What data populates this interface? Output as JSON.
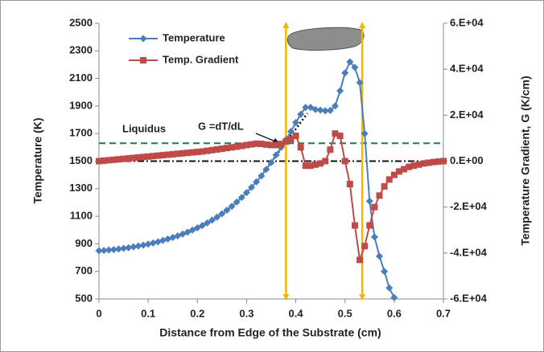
{
  "chart_data": {
    "type": "line",
    "xlabel": "Distance from Edge of the Substrate (cm)",
    "ylabel": "Temperature (K)",
    "y2label": "Temperature Gradient, G (K/cm)",
    "xlim": [
      0,
      0.7
    ],
    "xticks": [
      0,
      0.1,
      0.2,
      0.3,
      0.4,
      0.5,
      0.6,
      0.7
    ],
    "ylim": [
      500,
      2500
    ],
    "yticks": [
      500,
      700,
      900,
      1100,
      1300,
      1500,
      1700,
      1900,
      2100,
      2300,
      2500
    ],
    "y2lim": [
      -60000,
      60000
    ],
    "y2ticks": [
      {
        "value": -60000,
        "label": "-6.E+04"
      },
      {
        "value": -40000,
        "label": "-4.E+04"
      },
      {
        "value": -20000,
        "label": "-2.E+04"
      },
      {
        "value": 0,
        "label": "0.E+00"
      },
      {
        "value": 20000,
        "label": "2.E+04"
      },
      {
        "value": 40000,
        "label": "4.E+04"
      },
      {
        "value": 60000,
        "label": "6.E+04"
      }
    ],
    "annotations": [
      "Liquidus",
      "G =dT/dL"
    ],
    "hlines": [
      {
        "value": 1630,
        "color": "#1f7a4c",
        "dash": "8 5"
      },
      {
        "value": 1500,
        "color": "#111111",
        "dash": "8 3 2 3"
      }
    ],
    "vlines": [
      {
        "value": 0.38,
        "color": "#f5b800"
      },
      {
        "value": 0.535,
        "color": "#f5b800"
      }
    ],
    "series": [
      {
        "name": "Temperature",
        "color": "#4a7ebb",
        "marker": "diamond",
        "x": [
          0,
          0.01,
          0.02,
          0.03,
          0.04,
          0.05,
          0.06,
          0.07,
          0.08,
          0.09,
          0.1,
          0.11,
          0.12,
          0.13,
          0.14,
          0.15,
          0.16,
          0.17,
          0.18,
          0.19,
          0.2,
          0.21,
          0.22,
          0.23,
          0.24,
          0.25,
          0.26,
          0.27,
          0.28,
          0.29,
          0.3,
          0.31,
          0.32,
          0.33,
          0.34,
          0.35,
          0.36,
          0.37,
          0.38,
          0.39,
          0.4,
          0.41,
          0.42,
          0.43,
          0.44,
          0.45,
          0.46,
          0.47,
          0.48,
          0.49,
          0.5,
          0.51,
          0.52,
          0.53,
          0.54,
          0.55,
          0.56,
          0.57,
          0.58,
          0.59,
          0.6
        ],
        "values": [
          850,
          852,
          855,
          858,
          862,
          867,
          872,
          878,
          884,
          891,
          898,
          906,
          915,
          925,
          935,
          946,
          958,
          971,
          985,
          1000,
          1016,
          1033,
          1052,
          1072,
          1094,
          1118,
          1144,
          1172,
          1203,
          1236,
          1272,
          1310,
          1350,
          1393,
          1440,
          1490,
          1545,
          1600,
          1655,
          1715,
          1780,
          1840,
          1890,
          1890,
          1875,
          1870,
          1865,
          1868,
          1900,
          2010,
          2140,
          2220,
          2180,
          2070,
          1700,
          1210,
          950,
          810,
          700,
          580,
          510
        ]
      },
      {
        "name": "Temp. Gradient",
        "color": "#be4b48",
        "marker": "square",
        "axis": "y2",
        "x": [
          0,
          0.01,
          0.02,
          0.03,
          0.04,
          0.05,
          0.06,
          0.07,
          0.08,
          0.09,
          0.1,
          0.11,
          0.12,
          0.13,
          0.14,
          0.15,
          0.16,
          0.17,
          0.18,
          0.19,
          0.2,
          0.21,
          0.22,
          0.23,
          0.24,
          0.25,
          0.26,
          0.27,
          0.28,
          0.29,
          0.3,
          0.31,
          0.32,
          0.33,
          0.34,
          0.35,
          0.36,
          0.37,
          0.38,
          0.39,
          0.4,
          0.41,
          0.42,
          0.43,
          0.44,
          0.45,
          0.46,
          0.47,
          0.48,
          0.49,
          0.5,
          0.51,
          0.52,
          0.53,
          0.54,
          0.55,
          0.56,
          0.57,
          0.58,
          0.59,
          0.6,
          0.61,
          0.62,
          0.63,
          0.64,
          0.65,
          0.66,
          0.67,
          0.68,
          0.69,
          0.7
        ],
        "values": [
          0,
          200,
          400,
          600,
          800,
          1000,
          1200,
          1400,
          1600,
          1800,
          2000,
          2200,
          2400,
          2600,
          2800,
          3000,
          3200,
          3400,
          3600,
          3800,
          4000,
          4200,
          4500,
          4800,
          5100,
          5400,
          5700,
          6000,
          6300,
          6600,
          7000,
          7300,
          7600,
          7500,
          7200,
          7000,
          7000,
          7500,
          8500,
          9500,
          11000,
          6000,
          -2000,
          -2000,
          -1500,
          -1000,
          0,
          5000,
          12000,
          11000,
          0,
          -10000,
          -28000,
          -43000,
          -37000,
          -28000,
          -20000,
          -15000,
          -11000,
          -8000,
          -6000,
          -4500,
          -3500,
          -2500,
          -2000,
          -1500,
          -1000,
          -700,
          -400,
          -200,
          0
        ]
      }
    ]
  }
}
